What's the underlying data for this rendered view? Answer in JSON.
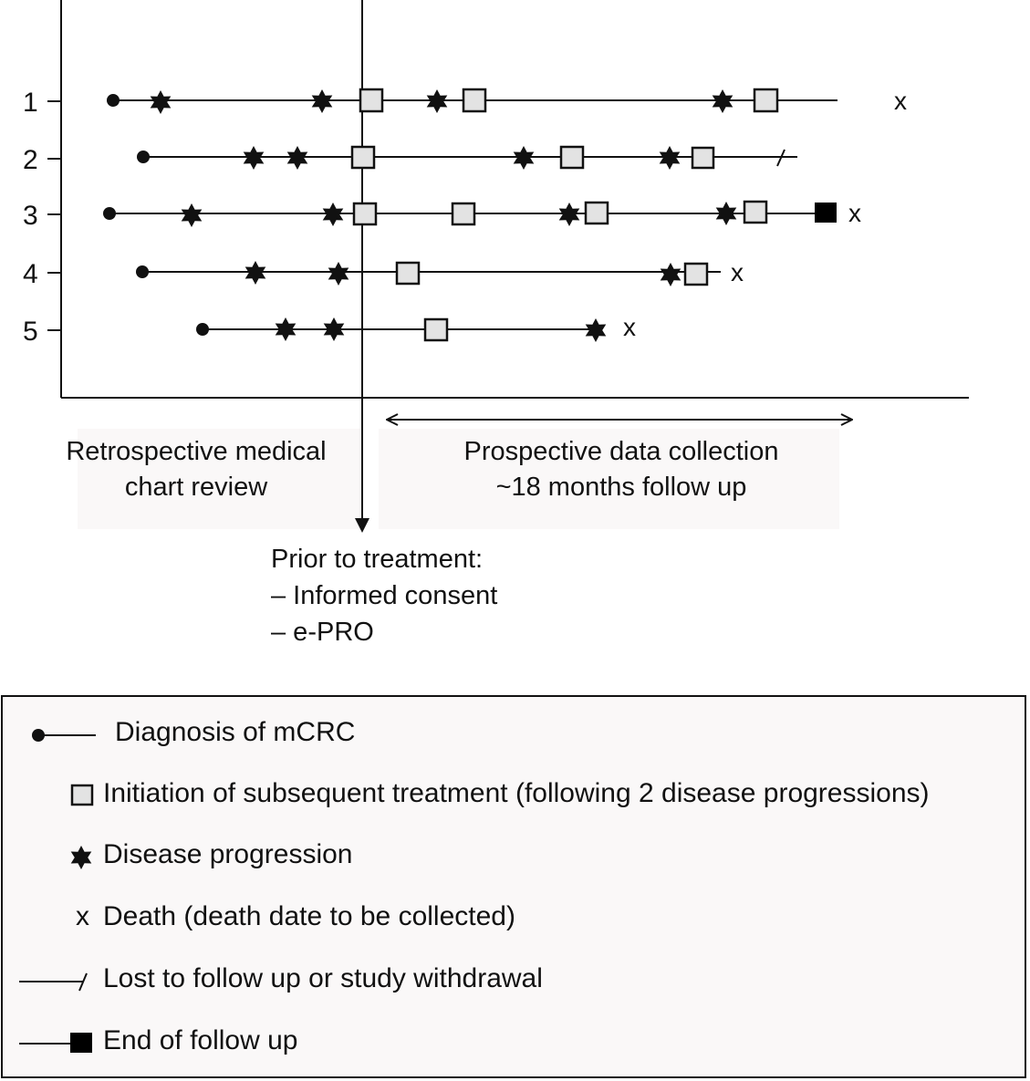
{
  "timeline": {
    "patients": [
      {
        "id": "1",
        "events": [
          "diagnosis",
          "progression",
          "progression",
          "treatment",
          "progression",
          "treatment",
          "progression",
          "treatment"
        ],
        "outcome": "death"
      },
      {
        "id": "2",
        "events": [
          "diagnosis",
          "progression",
          "progression",
          "treatment",
          "progression",
          "treatment",
          "progression",
          "treatment"
        ],
        "outcome": "lost"
      },
      {
        "id": "3",
        "events": [
          "diagnosis",
          "progression",
          "progression",
          "treatment",
          "treatment",
          "progression",
          "treatment",
          "progression",
          "treatment"
        ],
        "outcome": "end-and-death"
      },
      {
        "id": "4",
        "events": [
          "diagnosis",
          "progression",
          "progression",
          "treatment",
          "progression",
          "treatment"
        ],
        "outcome": "death"
      },
      {
        "id": "5",
        "events": [
          "diagnosis",
          "progression",
          "progression",
          "treatment",
          "progression"
        ],
        "outcome": "death"
      }
    ],
    "death_symbol": "x",
    "retrospective_label_line1": "Retrospective medical",
    "retrospective_label_line2": "chart review",
    "prospective_label_line1": "Prospective data collection",
    "prospective_label_line2": "~18 months follow up",
    "prior_title": "Prior to treatment:",
    "prior_item1": "– Informed consent",
    "prior_item2": "– e-PRO"
  },
  "legend": {
    "diagnosis": "Diagnosis of mCRC",
    "treatment": "Initiation of subsequent treatment (following 2 disease progressions)",
    "progression": "Disease progression",
    "death_symbol": "x",
    "death": "Death (death date to be collected)",
    "lost": "Lost to follow up or study withdrawal",
    "end": "End of follow up"
  },
  "colors": {
    "line": "#111111",
    "treatment_fill": "#e3e3e3",
    "end_fill": "#000000"
  }
}
